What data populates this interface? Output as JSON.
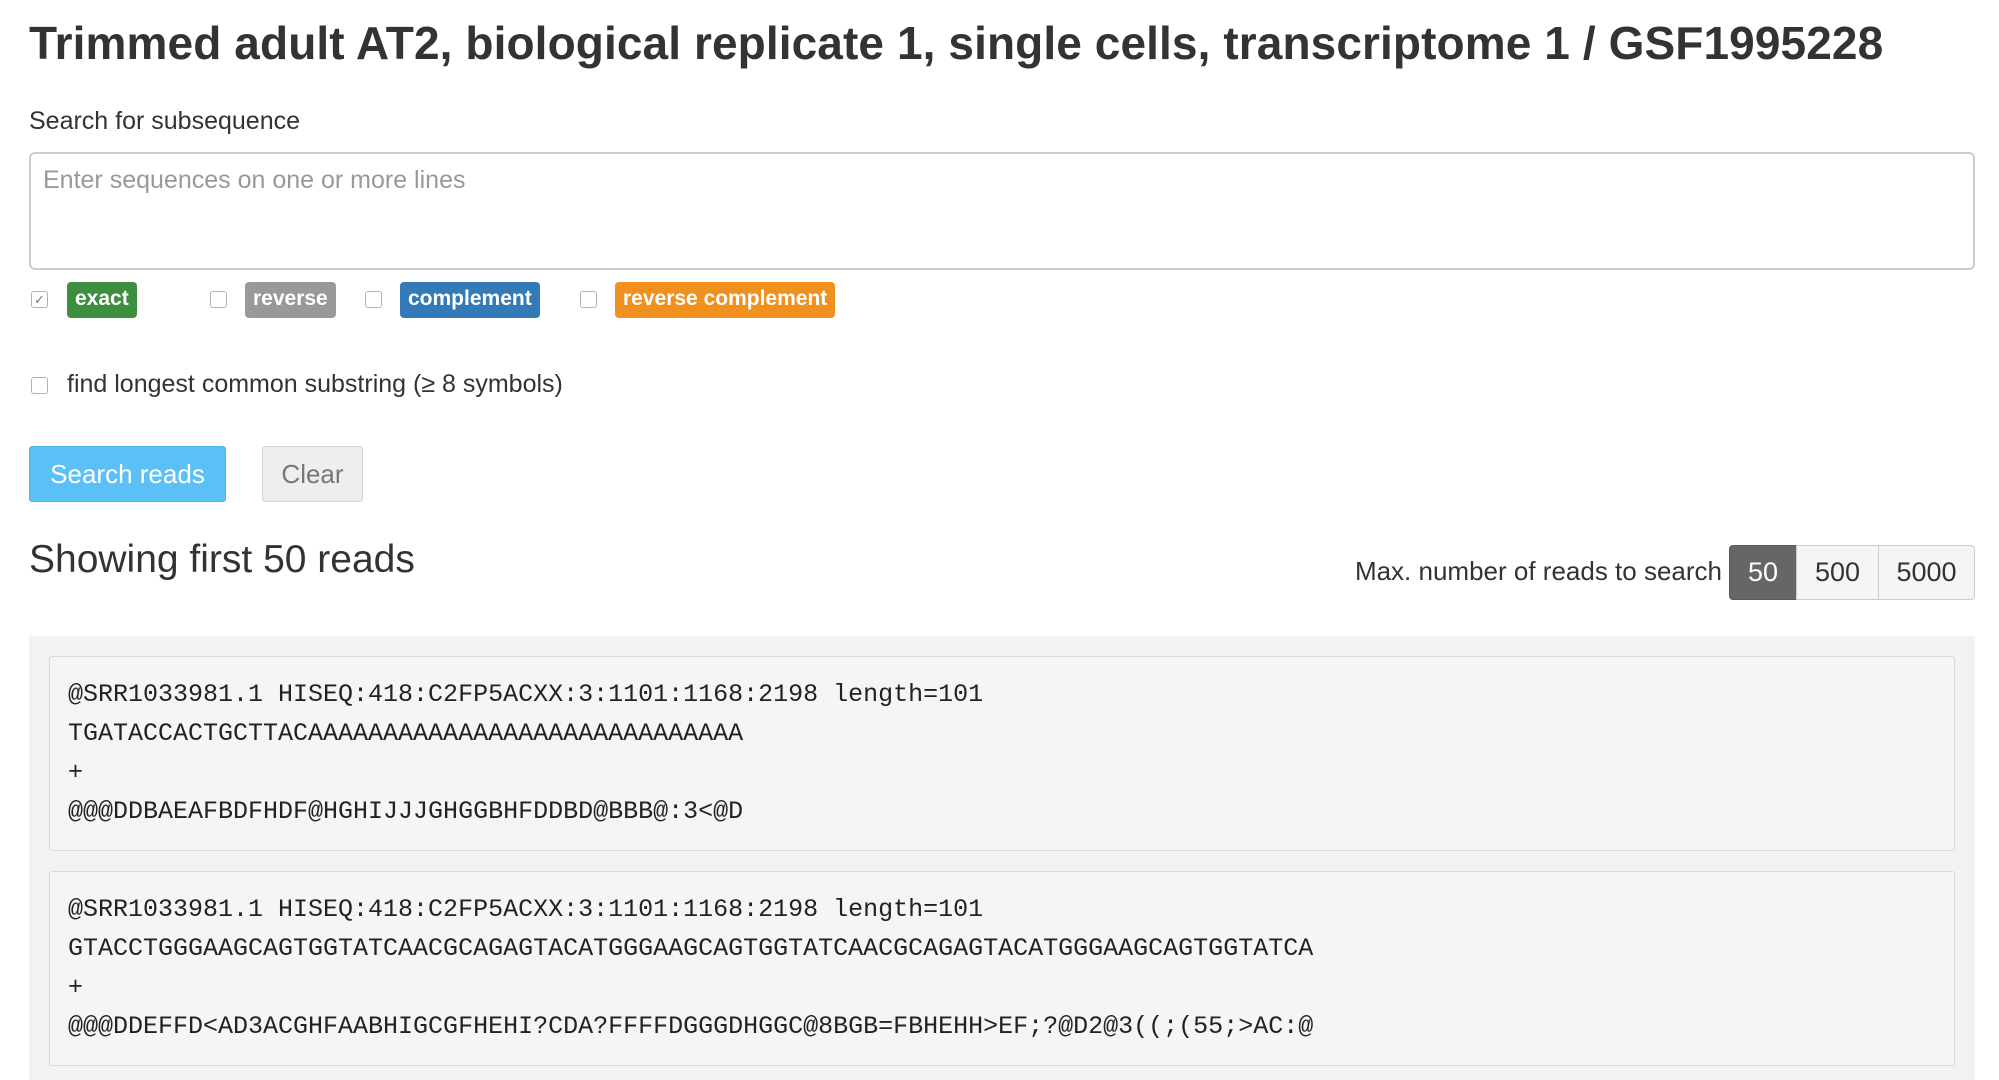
{
  "header": {
    "title": "Trimmed adult AT2, biological replicate 1, single cells, transcriptome 1 / GSF1995228"
  },
  "search": {
    "label": "Search for subsequence",
    "placeholder": "Enter sequences on one or more lines",
    "value": ""
  },
  "options": {
    "exact": {
      "label": "exact",
      "checked": true,
      "color": "#3e8e41"
    },
    "reverse": {
      "label": "reverse",
      "checked": false,
      "color": "#999999"
    },
    "complement": {
      "label": "complement",
      "checked": false,
      "color": "#337ab7"
    },
    "reverse_complement": {
      "label": "reverse complement",
      "checked": false,
      "color": "#f0901e"
    },
    "longest_common": {
      "label": "find longest common substring (≥ 8 symbols)",
      "checked": false
    }
  },
  "actions": {
    "search_label": "Search reads",
    "clear_label": "Clear",
    "search_color": "#5bc0f5"
  },
  "results": {
    "showing_text": "Showing first 50 reads",
    "max_label": "Max. number of reads to search",
    "limits": [
      "50",
      "500",
      "5000"
    ],
    "selected_limit": "50"
  },
  "reads": [
    {
      "header": "@SRR1033981.1 HISEQ:418:C2FP5ACXX:3:1101:1168:2198 length=101",
      "sequence": "TGATACCACTGCTTACAAAAAAAAAAAAAAAAAAAAAAAAAAAAA",
      "separator": "+",
      "quality": "@@@DDBAEAFBDFHDF@HGHIJJJGHGGBHFDDBD@BBB@:3<@D"
    },
    {
      "header": "@SRR1033981.1 HISEQ:418:C2FP5ACXX:3:1101:1168:2198 length=101",
      "sequence": "GTACCTGGGAAGCAGTGGTATCAACGCAGAGTACATGGGAAGCAGTGGTATCAACGCAGAGTACATGGGAAGCAGTGGTATCA",
      "separator": "+",
      "quality": "@@@DDEFFD<AD3ACGHFAABHIGCGFHEHI?CDA?FFFFDGGGDHGGC@8BGB=FBHEHH>EF;?@D2@3((;(55;>AC:@"
    }
  ]
}
